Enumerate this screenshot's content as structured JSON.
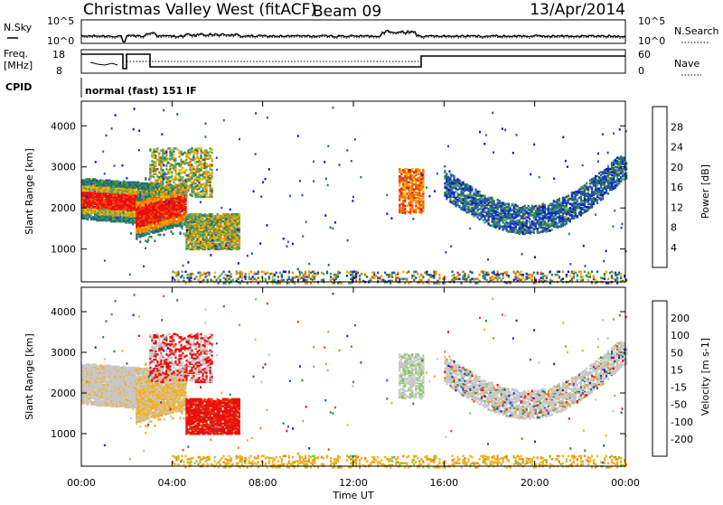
{
  "header": {
    "station": "Christmas Valley West (fitACF)",
    "beam": "Beam 09",
    "date": "13/Apr/2014"
  },
  "top_panels": {
    "nsky_label": "N.Sky",
    "nsearch_label": "N.Search",
    "noise_tick_top": "10^5",
    "noise_tick_bottom": "10^0",
    "freq_label": "Freq.",
    "freq_unit": "[MHz]",
    "freq_tick_top": "18",
    "freq_tick_bottom": "8",
    "nave_label": "Nave",
    "nave_tick_top": "60",
    "nave_tick_bottom": "0",
    "cpid_label": "CPID",
    "cpid_value": "normal (fast) 151 IF"
  },
  "colors": {
    "power_scale": [
      "#0a10e0",
      "#1f4fb3",
      "#2e7a4d",
      "#4aa36f",
      "#f4b400",
      "#f08a00",
      "#f05a00",
      "#e81010"
    ],
    "velocity_scale": [
      "#e81010",
      "#f04a00",
      "#f08a00",
      "#f6b020",
      "#c8c8c8",
      "#7ccf4c",
      "#2e8a3c",
      "#1e5fb8",
      "#1428c8"
    ]
  },
  "chart_data": [
    {
      "type": "heatmap",
      "name": "power",
      "ylabel": "Slant Range [km]",
      "yticks": [
        "4000",
        "3000",
        "2000",
        "1000"
      ],
      "ylim": [
        200,
        4600
      ],
      "colorbar_label": "Power [dB]",
      "colorbar_ticks": [
        "28",
        "24",
        "20",
        "16",
        "12",
        "8",
        "4"
      ]
    },
    {
      "type": "heatmap",
      "name": "velocity",
      "ylabel": "Slant Range [km]",
      "yticks": [
        "4000",
        "3000",
        "2000",
        "1000"
      ],
      "ylim": [
        200,
        4600
      ],
      "colorbar_label": "Velocity [m s-1]",
      "colorbar_ticks": [
        "200",
        "100",
        "50",
        "15",
        "-15",
        "-50",
        "-100",
        "-200"
      ]
    }
  ],
  "xaxis": {
    "label": "Time UT",
    "ticks": [
      "00:00",
      "04:00",
      "08:00",
      "12:00",
      "16:00",
      "20:00",
      "00:00"
    ]
  }
}
